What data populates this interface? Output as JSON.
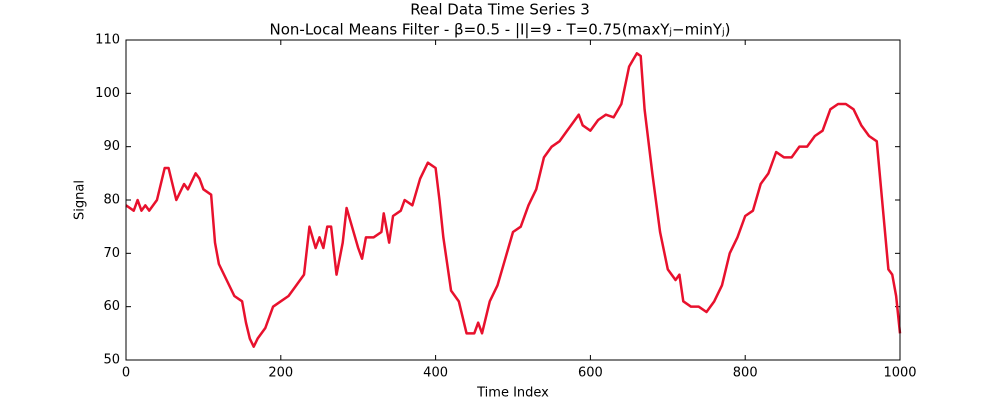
{
  "chart_data": {
    "type": "line",
    "title": "Real Data Time Series 3",
    "subtitle": "Non-Local Means Filter - β=0.5 - |I|=9 - T=0.75(maxYⱼ−minYⱼ)",
    "x_label": "Time Index",
    "y_label": "Signal",
    "x": [
      0,
      10,
      15,
      20,
      25,
      30,
      40,
      50,
      55,
      65,
      75,
      80,
      90,
      95,
      100,
      110,
      115,
      120,
      130,
      140,
      150,
      155,
      160,
      165,
      170,
      180,
      190,
      200,
      210,
      220,
      230,
      237,
      245,
      250,
      255,
      260,
      265,
      272,
      280,
      285,
      290,
      300,
      305,
      310,
      320,
      330,
      333,
      340,
      345,
      355,
      360,
      370,
      380,
      390,
      400,
      405,
      410,
      415,
      420,
      430,
      440,
      450,
      455,
      460,
      470,
      480,
      490,
      500,
      510,
      520,
      530,
      540,
      550,
      560,
      570,
      580,
      585,
      590,
      600,
      610,
      620,
      630,
      640,
      650,
      660,
      665,
      670,
      680,
      690,
      700,
      710,
      715,
      720,
      730,
      740,
      750,
      760,
      770,
      780,
      790,
      800,
      810,
      820,
      830,
      840,
      850,
      860,
      870,
      880,
      890,
      900,
      910,
      920,
      930,
      940,
      950,
      960,
      970,
      980,
      985,
      990,
      995,
      1000
    ],
    "series": [
      {
        "color": "#e8112d",
        "values": [
          79,
          78,
          80,
          78,
          79,
          78,
          80,
          86,
          86,
          80,
          83,
          82,
          85,
          84,
          82,
          81,
          72,
          68,
          65,
          62,
          61,
          57,
          54,
          52.5,
          54,
          56,
          60,
          61,
          62,
          64,
          66,
          75,
          71,
          73,
          71,
          75,
          75,
          66,
          72,
          78.5,
          76,
          71,
          69,
          73,
          73,
          74,
          77.5,
          72,
          77,
          78,
          80,
          79,
          84,
          87,
          86,
          80,
          73,
          68,
          63,
          61,
          55,
          55,
          57,
          55,
          61,
          64,
          69,
          74,
          75,
          79,
          82,
          88,
          90,
          91,
          93,
          95,
          96,
          94,
          93,
          95,
          96,
          95.5,
          98,
          105,
          107.5,
          107,
          97,
          85,
          74,
          67,
          65,
          66,
          61,
          60,
          60,
          59,
          61,
          64,
          70,
          73,
          77,
          78,
          83,
          85,
          89,
          88,
          88,
          90,
          90,
          92,
          93,
          97,
          98,
          98,
          97,
          94,
          92,
          91,
          75,
          67,
          66,
          62,
          55
        ]
      }
    ],
    "xlim": [
      0,
      1000
    ],
    "ylim": [
      50,
      110
    ],
    "xticks": [
      0,
      200,
      400,
      600,
      800,
      1000
    ],
    "yticks": [
      50,
      60,
      70,
      80,
      90,
      100,
      110
    ]
  }
}
